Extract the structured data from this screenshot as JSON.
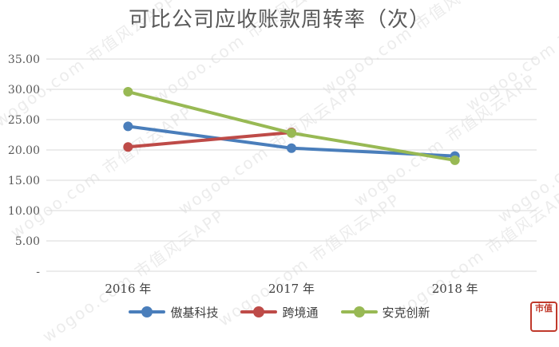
{
  "watermark": "wogoo.com 市值风云APP",
  "chart_data": {
    "type": "line",
    "title": "可比公司应收账款周转率（次）",
    "categories": [
      "2016 年",
      "2017 年",
      "2018 年"
    ],
    "yticks": [
      "35.00",
      "30.00",
      "25.00",
      "20.00",
      "15.00",
      "10.00",
      "5.00",
      "-"
    ],
    "ylim": [
      0,
      35
    ],
    "grid": true,
    "legend_position": "bottom",
    "series": [
      {
        "name": "傲基科技",
        "color": "#4a7ebb",
        "values": [
          23.9,
          20.3,
          19.0
        ]
      },
      {
        "name": "跨境通",
        "color": "#be4b48",
        "values": [
          20.5,
          22.9,
          null
        ]
      },
      {
        "name": "安克创新",
        "color": "#98b954",
        "values": [
          29.6,
          22.8,
          18.3
        ]
      }
    ]
  },
  "logo_text": "市值"
}
